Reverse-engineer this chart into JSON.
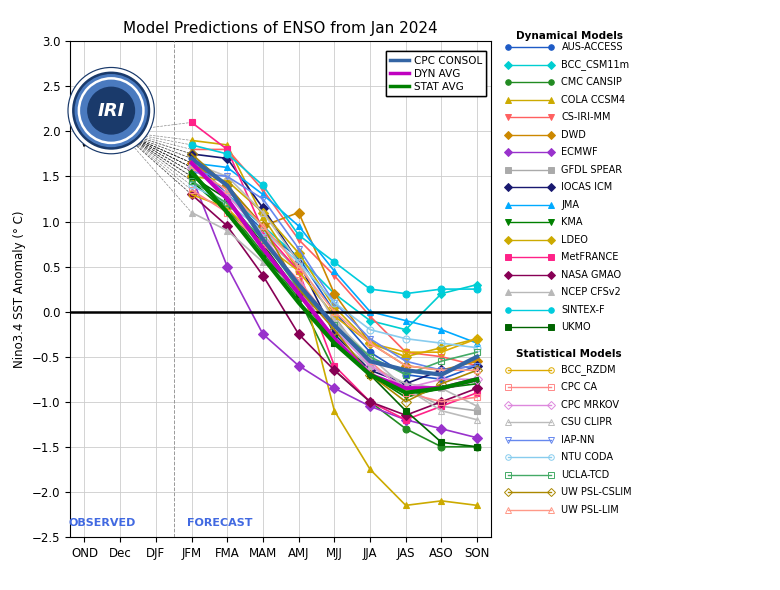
{
  "title": "Model Predictions of ENSO from Jan 2024",
  "ylabel": "Nino3.4 SST Anomaly (° C)",
  "xticks": [
    "OND",
    "Dec",
    "DJF",
    "JFM",
    "FMA",
    "MAM",
    "AMJ",
    "MJJ",
    "JJA",
    "JAS",
    "ASO",
    "SON"
  ],
  "ylim": [
    -2.5,
    3.0
  ],
  "observed_label": "OBSERVED",
  "forecast_label": "FORECAST",
  "observed_val_ond": 1.85,
  "observed_val_dec": 2.0,
  "background_color": "#ffffff",
  "grid_color": "#cccccc",
  "dynamical_models": [
    "AUS_ACCESS",
    "BCC_CSM11m",
    "CMC_CANSIP",
    "COLA_CCSM4",
    "CS_IRI_MM",
    "DWD",
    "ECMWF",
    "GFDL_SPEAR",
    "IOCAS_ICM",
    "JMA",
    "KMA",
    "LDEO",
    "MetFRANCE",
    "NASA_GMAO",
    "NCEP_CFSv2",
    "SINTEX_F",
    "UKMO"
  ],
  "statistical_models": [
    "BCC_RZDM",
    "CPC_CA",
    "CPC_MRKOV",
    "CSU_CLIPR",
    "IAP_NN",
    "NTU_CODA",
    "UCLA_TCD",
    "UW_PSL_CSLIM",
    "UW_PSL_LIM"
  ],
  "avg_models": [
    "CPC_CONSOL",
    "DYN_AVG",
    "STAT_AVG"
  ],
  "models": {
    "CPC_CONSOL": {
      "color": "#3465a4",
      "linewidth": 3,
      "marker": null,
      "linestyle": "-",
      "label": "CPC CONSOL",
      "values": [
        null,
        null,
        null,
        1.7,
        1.4,
        0.8,
        0.3,
        -0.15,
        -0.55,
        -0.65,
        -0.7,
        -0.5
      ],
      "zorder": 10
    },
    "DYN_AVG": {
      "color": "#c000c0",
      "linewidth": 3,
      "marker": null,
      "linestyle": "-",
      "label": "DYN AVG",
      "values": [
        null,
        null,
        null,
        1.65,
        1.25,
        0.7,
        0.2,
        -0.3,
        -0.7,
        -0.85,
        -0.85,
        -0.75
      ],
      "zorder": 10
    },
    "STAT_AVG": {
      "color": "#008000",
      "linewidth": 3,
      "marker": null,
      "linestyle": "-",
      "label": "STAT AVG",
      "values": [
        null,
        null,
        null,
        1.55,
        1.1,
        0.6,
        0.1,
        -0.35,
        -0.7,
        -0.9,
        -0.85,
        -0.75
      ],
      "zorder": 10
    },
    "AUS_ACCESS": {
      "color": "#1e5bc6",
      "linewidth": 1.2,
      "marker": "o",
      "markersize": 5,
      "label": "AUS-ACCESS",
      "values": [
        null,
        null,
        null,
        1.7,
        1.3,
        0.9,
        0.6,
        0.0,
        -0.45,
        -0.7,
        -0.75,
        -0.6
      ],
      "zorder": 5,
      "mfc": "#1e5bc6"
    },
    "BCC_CSM11m": {
      "color": "#00ced1",
      "linewidth": 1.2,
      "marker": "D",
      "markersize": 4,
      "label": "BCC_CSM11m",
      "values": [
        null,
        null,
        null,
        1.6,
        1.3,
        0.95,
        0.6,
        0.2,
        -0.1,
        -0.2,
        0.2,
        0.3
      ],
      "zorder": 5,
      "mfc": "#00ced1"
    },
    "CMC_CANSIP": {
      "color": "#228b22",
      "linewidth": 1.2,
      "marker": "o",
      "markersize": 5,
      "label": "CMC CANSIP",
      "values": [
        null,
        null,
        null,
        1.55,
        1.15,
        0.65,
        0.15,
        -0.65,
        -1.0,
        -1.3,
        -1.5,
        -1.5
      ],
      "zorder": 5,
      "mfc": "#228b22"
    },
    "COLA_CCSM4": {
      "color": "#ccaa00",
      "linewidth": 1.2,
      "marker": "^",
      "markersize": 5,
      "label": "COLA CCSM4",
      "values": [
        null,
        null,
        null,
        1.9,
        1.85,
        1.05,
        0.45,
        -1.1,
        -1.75,
        -2.15,
        -2.1,
        -2.15
      ],
      "zorder": 5,
      "mfc": "#ccaa00"
    },
    "CS_IRI_MM": {
      "color": "#ff6060",
      "linewidth": 1.2,
      "marker": "v",
      "markersize": 5,
      "label": "CS-IRI-MM",
      "values": [
        null,
        null,
        null,
        1.8,
        1.8,
        1.35,
        0.8,
        0.4,
        -0.05,
        -0.45,
        -0.5,
        -0.6
      ],
      "zorder": 5,
      "mfc": "#ff6060"
    },
    "DWD": {
      "color": "#cc8800",
      "linewidth": 1.2,
      "marker": "D",
      "markersize": 5,
      "label": "DWD",
      "values": [
        null,
        null,
        null,
        1.65,
        1.4,
        0.95,
        1.1,
        0.2,
        -0.35,
        -0.6,
        -0.65,
        -0.55
      ],
      "zorder": 5,
      "mfc": "#cc8800"
    },
    "ECMWF": {
      "color": "#9932cc",
      "linewidth": 1.2,
      "marker": "D",
      "markersize": 5,
      "label": "ECMWF",
      "values": [
        null,
        null,
        null,
        1.5,
        0.5,
        -0.25,
        -0.6,
        -0.85,
        -1.05,
        -1.2,
        -1.3,
        -1.4
      ],
      "zorder": 5,
      "mfc": "#9932cc"
    },
    "GFDL_SPEAR": {
      "color": "#aaaaaa",
      "linewidth": 1.2,
      "marker": "s",
      "markersize": 5,
      "label": "GFDL SPEAR",
      "values": [
        null,
        null,
        null,
        1.6,
        1.3,
        0.85,
        0.45,
        -0.05,
        -0.6,
        -0.85,
        -1.05,
        -1.1
      ],
      "zorder": 5,
      "mfc": "#aaaaaa"
    },
    "IOCAS_ICM": {
      "color": "#191970",
      "linewidth": 1.2,
      "marker": "D",
      "markersize": 5,
      "label": "IOCAS ICM",
      "values": [
        null,
        null,
        null,
        1.75,
        1.7,
        1.15,
        0.55,
        -0.25,
        -0.65,
        -0.8,
        -0.65,
        -0.6
      ],
      "zorder": 5,
      "mfc": "#191970"
    },
    "JMA": {
      "color": "#00aaff",
      "linewidth": 1.2,
      "marker": "^",
      "markersize": 5,
      "label": "JMA",
      "values": [
        null,
        null,
        null,
        1.65,
        1.6,
        1.3,
        0.95,
        0.45,
        0.0,
        -0.1,
        -0.2,
        -0.35
      ],
      "zorder": 5,
      "mfc": "#00aaff"
    },
    "KMA": {
      "color": "#008000",
      "linewidth": 1.2,
      "marker": "v",
      "markersize": 5,
      "label": "KMA",
      "values": [
        null,
        null,
        null,
        1.45,
        1.1,
        0.6,
        0.25,
        -0.3,
        -0.7,
        -0.95,
        -0.85,
        -0.8
      ],
      "zorder": 5,
      "mfc": "#008000"
    },
    "LDEO": {
      "color": "#ccaa00",
      "linewidth": 1.2,
      "marker": "D",
      "markersize": 5,
      "label": "LDEO",
      "values": [
        null,
        null,
        null,
        1.5,
        1.45,
        1.1,
        0.65,
        0.05,
        -0.35,
        -0.5,
        -0.4,
        -0.3
      ],
      "zorder": 5,
      "mfc": "#ccaa00"
    },
    "MetFRANCE": {
      "color": "#ff2288",
      "linewidth": 1.2,
      "marker": "s",
      "markersize": 5,
      "label": "MetFRANCE",
      "values": [
        null,
        null,
        null,
        2.1,
        1.8,
        0.9,
        0.45,
        -0.6,
        -1.0,
        -1.2,
        -1.05,
        -0.9
      ],
      "zorder": 5,
      "mfc": "#ff2288"
    },
    "NASA_GMAO": {
      "color": "#880055",
      "linewidth": 1.2,
      "marker": "D",
      "markersize": 5,
      "label": "NASA GMAO",
      "values": [
        null,
        null,
        null,
        1.3,
        0.95,
        0.4,
        -0.25,
        -0.65,
        -1.0,
        -1.15,
        -1.0,
        -0.85
      ],
      "zorder": 5,
      "mfc": "#880055"
    },
    "NCEP_CFSv2": {
      "color": "#b8b8b8",
      "linewidth": 1.2,
      "marker": "^",
      "markersize": 5,
      "label": "NCEP CFSv2",
      "values": [
        null,
        null,
        null,
        1.1,
        0.9,
        0.55,
        0.25,
        -0.3,
        -0.6,
        -0.8,
        -0.85,
        -1.05
      ],
      "zorder": 5,
      "mfc": "#b8b8b8"
    },
    "SINTEX_F": {
      "color": "#00ccdd",
      "linewidth": 1.2,
      "marker": "o",
      "markersize": 5,
      "label": "SINTEX-F",
      "values": [
        null,
        null,
        null,
        1.85,
        1.75,
        1.4,
        0.85,
        0.55,
        0.25,
        0.2,
        0.25,
        0.25
      ],
      "zorder": 5,
      "mfc": "#00ccdd"
    },
    "UKMO": {
      "color": "#006400",
      "linewidth": 1.2,
      "marker": "s",
      "markersize": 5,
      "label": "UKMO",
      "values": [
        null,
        null,
        null,
        1.5,
        1.25,
        0.75,
        0.2,
        -0.35,
        -0.7,
        -1.1,
        -1.45,
        -1.5
      ],
      "zorder": 5,
      "mfc": "#006400"
    },
    "BCC_RZDM": {
      "color": "#ddaa00",
      "linewidth": 1.2,
      "marker": "o",
      "markersize": 5,
      "label": "BCC_RZDM",
      "values": [
        null,
        null,
        null,
        1.3,
        1.15,
        0.75,
        0.45,
        -0.05,
        -0.35,
        -0.45,
        -0.45,
        -0.3
      ],
      "zorder": 5,
      "mfc": "none"
    },
    "CPC_CA": {
      "color": "#ff8888",
      "linewidth": 1.2,
      "marker": "s",
      "markersize": 5,
      "label": "CPC CA",
      "values": [
        null,
        null,
        null,
        1.35,
        1.1,
        0.75,
        0.35,
        -0.15,
        -0.55,
        -0.9,
        -1.0,
        -0.95
      ],
      "zorder": 5,
      "mfc": "none"
    },
    "CPC_MRKOV": {
      "color": "#dd88dd",
      "linewidth": 1.2,
      "marker": "D",
      "markersize": 5,
      "label": "CPC MRKOV",
      "values": [
        null,
        null,
        null,
        1.6,
        1.3,
        0.85,
        0.3,
        -0.2,
        -0.6,
        -0.85,
        -0.75,
        -0.75
      ],
      "zorder": 5,
      "mfc": "none"
    },
    "CSU_CLIPR": {
      "color": "#bbbbbb",
      "linewidth": 1.2,
      "marker": "^",
      "markersize": 5,
      "label": "CSU CLIPR",
      "values": [
        null,
        null,
        null,
        1.65,
        1.5,
        1.1,
        0.55,
        -0.1,
        -0.5,
        -0.85,
        -1.1,
        -1.2
      ],
      "zorder": 5,
      "mfc": "none"
    },
    "IAP_NN": {
      "color": "#6688ee",
      "linewidth": 1.2,
      "marker": "v",
      "markersize": 5,
      "label": "IAP-NN",
      "values": [
        null,
        null,
        null,
        1.55,
        1.5,
        1.25,
        0.7,
        0.1,
        -0.3,
        -0.55,
        -0.65,
        -0.6
      ],
      "zorder": 5,
      "mfc": "none"
    },
    "NTU_CODA": {
      "color": "#88ccee",
      "linewidth": 1.2,
      "marker": "o",
      "markersize": 5,
      "label": "NTU CODA",
      "values": [
        null,
        null,
        null,
        1.4,
        1.2,
        0.9,
        0.55,
        0.1,
        -0.2,
        -0.3,
        -0.35,
        -0.4
      ],
      "zorder": 5,
      "mfc": "none"
    },
    "UCLA_TCD": {
      "color": "#44aa66",
      "linewidth": 1.2,
      "marker": "s",
      "markersize": 5,
      "label": "UCLA-TCD",
      "values": [
        null,
        null,
        null,
        1.45,
        1.2,
        0.8,
        0.25,
        -0.15,
        -0.5,
        -0.7,
        -0.55,
        -0.45
      ],
      "zorder": 5,
      "mfc": "none"
    },
    "UW_PSL_CSLIM": {
      "color": "#aa8800",
      "linewidth": 1.2,
      "marker": "D",
      "markersize": 5,
      "label": "UW PSL-CSLIM",
      "values": [
        null,
        null,
        null,
        1.75,
        1.4,
        0.95,
        0.25,
        -0.2,
        -0.7,
        -1.0,
        -0.8,
        -0.65
      ],
      "zorder": 5,
      "mfc": "none"
    },
    "UW_PSL_LIM": {
      "color": "#ff9988",
      "linewidth": 1.2,
      "marker": "^",
      "markersize": 5,
      "label": "UW PSL-LIM",
      "values": [
        null,
        null,
        null,
        1.6,
        1.35,
        0.95,
        0.5,
        0.0,
        -0.35,
        -0.6,
        -0.65,
        -0.65
      ],
      "zorder": 5,
      "mfc": "none"
    }
  }
}
